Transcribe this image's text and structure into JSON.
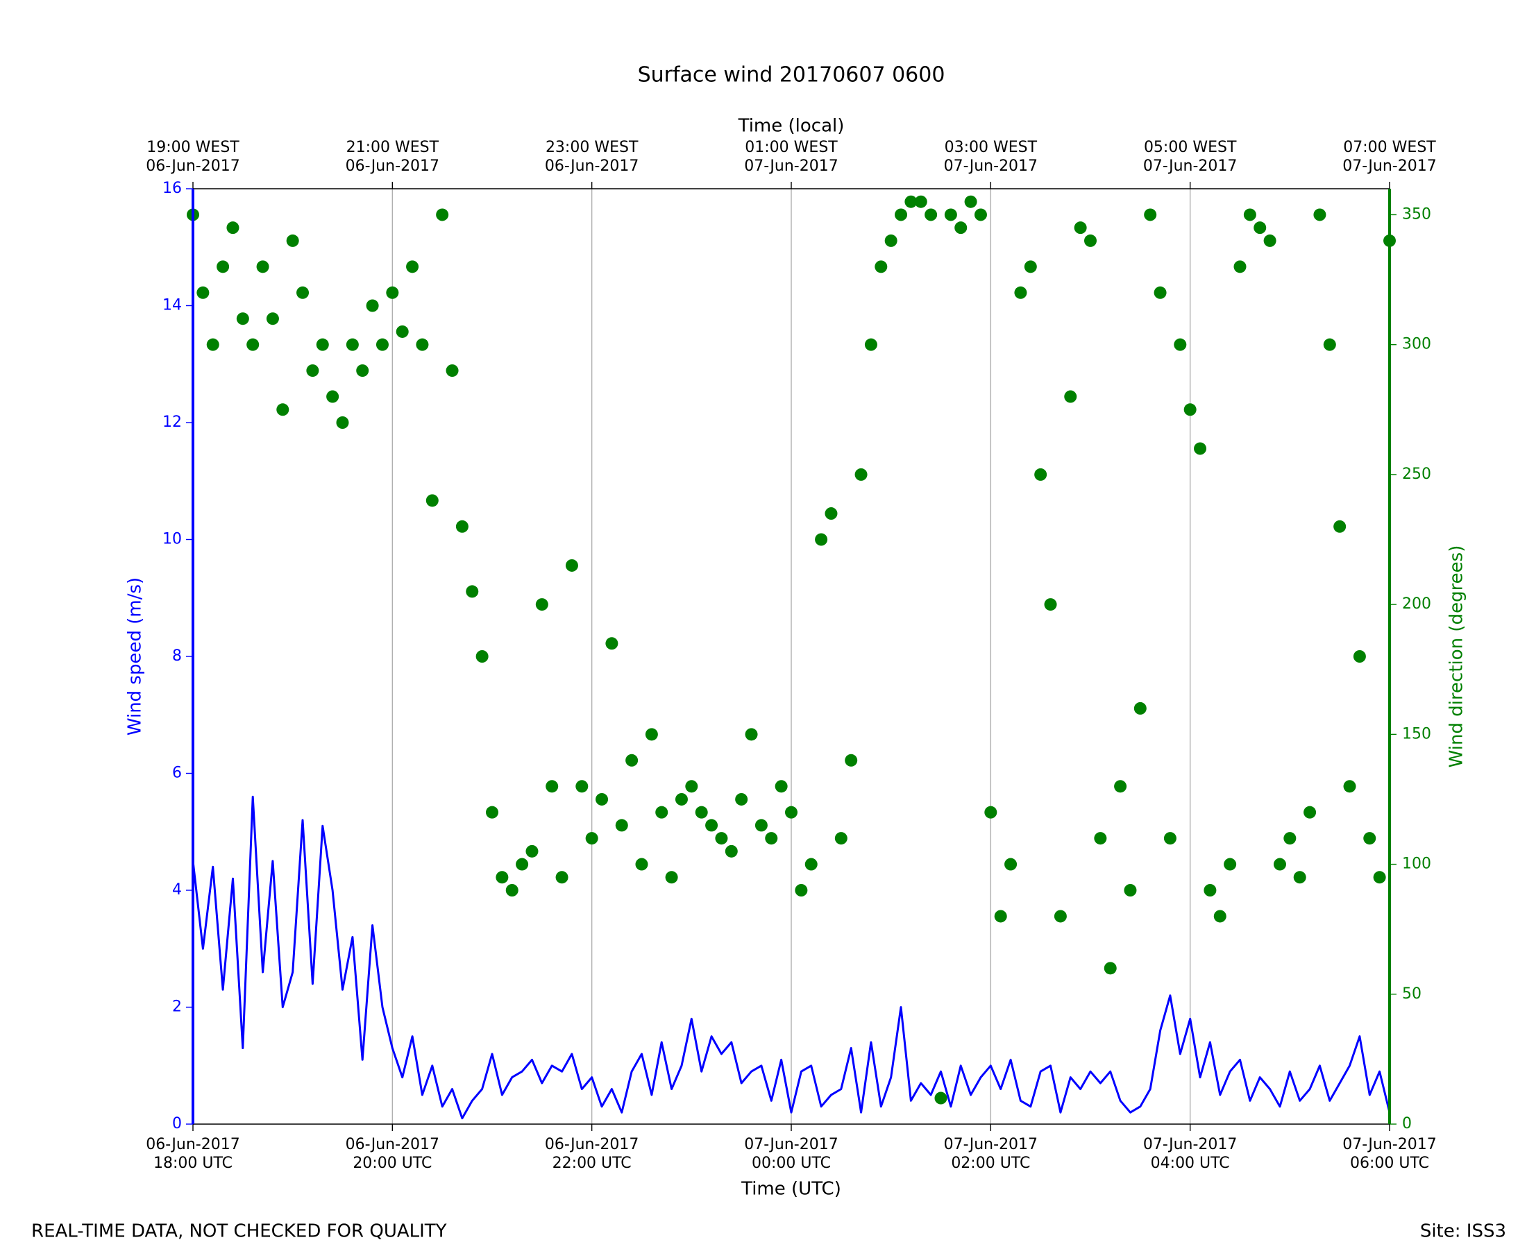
{
  "chart_data": {
    "type": "line",
    "title": "Surface wind 20170607 0600",
    "xlabel": "Time (UTC)",
    "x2label": "Time (local)",
    "ylabel": "Wind speed (m/s)",
    "y2label": "Wind direction (degrees)",
    "annotations": [
      "REAL-TIME DATA, NOT CHECKED FOR QUALITY",
      "Site: ISS3"
    ],
    "grid": true,
    "xlim": [
      "2017-06-06 18:00",
      "2017-06-07 06:00"
    ],
    "xticks": [
      {
        "value": "2017-06-06 18:00",
        "label": [
          "06-Jun-2017",
          "18:00 UTC"
        ]
      },
      {
        "value": "2017-06-06 20:00",
        "label": [
          "06-Jun-2017",
          "20:00 UTC"
        ]
      },
      {
        "value": "2017-06-06 22:00",
        "label": [
          "06-Jun-2017",
          "22:00 UTC"
        ]
      },
      {
        "value": "2017-06-07 00:00",
        "label": [
          "07-Jun-2017",
          "00:00 UTC"
        ]
      },
      {
        "value": "2017-06-07 02:00",
        "label": [
          "07-Jun-2017",
          "02:00 UTC"
        ]
      },
      {
        "value": "2017-06-07 04:00",
        "label": [
          "07-Jun-2017",
          "04:00 UTC"
        ]
      },
      {
        "value": "2017-06-07 06:00",
        "label": [
          "07-Jun-2017",
          "06:00 UTC"
        ]
      }
    ],
    "x2ticks": [
      {
        "value": "2017-06-06 18:00",
        "label": [
          "19:00 WEST",
          "06-Jun-2017"
        ]
      },
      {
        "value": "2017-06-06 20:00",
        "label": [
          "21:00 WEST",
          "06-Jun-2017"
        ]
      },
      {
        "value": "2017-06-06 22:00",
        "label": [
          "23:00 WEST",
          "06-Jun-2017"
        ]
      },
      {
        "value": "2017-06-07 00:00",
        "label": [
          "01:00 WEST",
          "07-Jun-2017"
        ]
      },
      {
        "value": "2017-06-07 02:00",
        "label": [
          "03:00 WEST",
          "07-Jun-2017"
        ]
      },
      {
        "value": "2017-06-07 04:00",
        "label": [
          "05:00 WEST",
          "07-Jun-2017"
        ]
      },
      {
        "value": "2017-06-07 06:00",
        "label": [
          "07:00 WEST",
          "07-Jun-2017"
        ]
      }
    ],
    "ylim": [
      0,
      16
    ],
    "yticks": [
      0,
      2,
      4,
      6,
      8,
      10,
      12,
      14,
      16
    ],
    "y2lim": [
      0,
      360
    ],
    "y2ticks": [
      0,
      50,
      100,
      150,
      200,
      250,
      300,
      350
    ],
    "x": [
      "2017-06-06 18:00",
      "2017-06-06 18:06",
      "2017-06-06 18:12",
      "2017-06-06 18:18",
      "2017-06-06 18:24",
      "2017-06-06 18:30",
      "2017-06-06 18:36",
      "2017-06-06 18:42",
      "2017-06-06 18:48",
      "2017-06-06 18:54",
      "2017-06-06 19:00",
      "2017-06-06 19:06",
      "2017-06-06 19:12",
      "2017-06-06 19:18",
      "2017-06-06 19:24",
      "2017-06-06 19:30",
      "2017-06-06 19:36",
      "2017-06-06 19:42",
      "2017-06-06 19:48",
      "2017-06-06 19:54",
      "2017-06-06 20:00",
      "2017-06-06 20:06",
      "2017-06-06 20:12",
      "2017-06-06 20:18",
      "2017-06-06 20:24",
      "2017-06-06 20:30",
      "2017-06-06 20:36",
      "2017-06-06 20:42",
      "2017-06-06 20:48",
      "2017-06-06 20:54",
      "2017-06-06 21:00",
      "2017-06-06 21:06",
      "2017-06-06 21:12",
      "2017-06-06 21:18",
      "2017-06-06 21:24",
      "2017-06-06 21:30",
      "2017-06-06 21:36",
      "2017-06-06 21:42",
      "2017-06-06 21:48",
      "2017-06-06 21:54",
      "2017-06-06 22:00",
      "2017-06-06 22:06",
      "2017-06-06 22:12",
      "2017-06-06 22:18",
      "2017-06-06 22:24",
      "2017-06-06 22:30",
      "2017-06-06 22:36",
      "2017-06-06 22:42",
      "2017-06-06 22:48",
      "2017-06-06 22:54",
      "2017-06-06 23:00",
      "2017-06-06 23:06",
      "2017-06-06 23:12",
      "2017-06-06 23:18",
      "2017-06-06 23:24",
      "2017-06-06 23:30",
      "2017-06-06 23:36",
      "2017-06-06 23:42",
      "2017-06-06 23:48",
      "2017-06-06 23:54",
      "2017-06-07 00:00",
      "2017-06-07 00:06",
      "2017-06-07 00:12",
      "2017-06-07 00:18",
      "2017-06-07 00:24",
      "2017-06-07 00:30",
      "2017-06-07 00:36",
      "2017-06-07 00:42",
      "2017-06-07 00:48",
      "2017-06-07 00:54",
      "2017-06-07 01:00",
      "2017-06-07 01:06",
      "2017-06-07 01:12",
      "2017-06-07 01:18",
      "2017-06-07 01:24",
      "2017-06-07 01:30",
      "2017-06-07 01:36",
      "2017-06-07 01:42",
      "2017-06-07 01:48",
      "2017-06-07 01:54",
      "2017-06-07 02:00",
      "2017-06-07 02:06",
      "2017-06-07 02:12",
      "2017-06-07 02:18",
      "2017-06-07 02:24",
      "2017-06-07 02:30",
      "2017-06-07 02:36",
      "2017-06-07 02:42",
      "2017-06-07 02:48",
      "2017-06-07 02:54",
      "2017-06-07 03:00",
      "2017-06-07 03:06",
      "2017-06-07 03:12",
      "2017-06-07 03:18",
      "2017-06-07 03:24",
      "2017-06-07 03:30",
      "2017-06-07 03:36",
      "2017-06-07 03:42",
      "2017-06-07 03:48",
      "2017-06-07 03:54",
      "2017-06-07 04:00",
      "2017-06-07 04:06",
      "2017-06-07 04:12",
      "2017-06-07 04:18",
      "2017-06-07 04:24",
      "2017-06-07 04:30",
      "2017-06-07 04:36",
      "2017-06-07 04:42",
      "2017-06-07 04:48",
      "2017-06-07 04:54",
      "2017-06-07 05:00",
      "2017-06-07 05:06",
      "2017-06-07 05:12",
      "2017-06-07 05:18",
      "2017-06-07 05:24",
      "2017-06-07 05:30",
      "2017-06-07 05:36",
      "2017-06-07 05:42",
      "2017-06-07 05:48",
      "2017-06-07 05:54",
      "2017-06-07 06:00"
    ],
    "series": [
      {
        "type": "line",
        "color": "#0000ff",
        "values": [
          4.5,
          3.0,
          4.4,
          2.3,
          4.2,
          1.3,
          5.6,
          2.6,
          4.5,
          2.0,
          2.6,
          5.2,
          2.4,
          5.1,
          4.0,
          2.3,
          3.2,
          1.1,
          3.4,
          2.0,
          1.3,
          0.8,
          1.5,
          0.5,
          1.0,
          0.3,
          0.6,
          0.1,
          0.4,
          0.6,
          1.2,
          0.5,
          0.8,
          0.9,
          1.1,
          0.7,
          1.0,
          0.9,
          1.2,
          0.6,
          0.8,
          0.3,
          0.6,
          0.2,
          0.9,
          1.2,
          0.5,
          1.4,
          0.6,
          1.0,
          1.8,
          0.9,
          1.5,
          1.2,
          1.4,
          0.7,
          0.9,
          1.0,
          0.4,
          1.1,
          0.2,
          0.9,
          1.0,
          0.3,
          0.5,
          0.6,
          1.3,
          0.2,
          1.4,
          0.3,
          0.8,
          2.0,
          0.4,
          0.7,
          0.5,
          0.9,
          0.3,
          1.0,
          0.5,
          0.8,
          1.0,
          0.6,
          1.1,
          0.4,
          0.3,
          0.9,
          1.0,
          0.2,
          0.8,
          0.6,
          0.9,
          0.7,
          0.9,
          0.4,
          0.2,
          0.3,
          0.6,
          1.6,
          2.2,
          1.2,
          1.8,
          0.8,
          1.4,
          0.5,
          0.9,
          1.1,
          0.4,
          0.8,
          0.6,
          0.3,
          0.9,
          0.4,
          0.6,
          1.0,
          0.4,
          0.7,
          1.0,
          1.5,
          0.5,
          0.9,
          0.2
        ]
      },
      {
        "type": "scatter",
        "color": "#008000",
        "axis": "y2",
        "values": [
          350,
          320,
          300,
          330,
          345,
          310,
          300,
          330,
          310,
          275,
          340,
          320,
          290,
          300,
          280,
          270,
          300,
          290,
          315,
          300,
          320,
          305,
          330,
          300,
          240,
          350,
          290,
          230,
          205,
          180,
          120,
          95,
          90,
          100,
          105,
          200,
          130,
          95,
          215,
          130,
          110,
          125,
          185,
          115,
          140,
          100,
          150,
          120,
          95,
          125,
          130,
          120,
          115,
          110,
          105,
          125,
          150,
          115,
          110,
          130,
          120,
          90,
          100,
          225,
          235,
          110,
          140,
          250,
          300,
          330,
          340,
          350,
          355,
          355,
          350,
          10,
          350,
          345,
          355,
          350,
          120,
          80,
          100,
          320,
          330,
          250,
          200,
          80,
          280,
          345,
          340,
          110,
          60,
          130,
          90,
          160,
          350,
          320,
          110,
          300,
          275,
          260,
          90,
          80,
          100,
          330,
          350,
          345,
          340,
          100,
          110,
          95,
          120,
          350,
          300,
          230,
          130,
          180,
          110,
          95,
          340
        ]
      }
    ]
  }
}
